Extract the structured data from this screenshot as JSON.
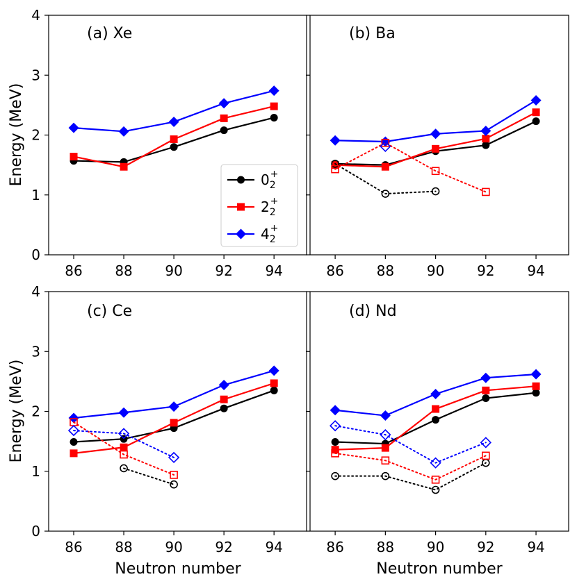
{
  "figure": {
    "ylabel": "Energy (MeV)",
    "xlabel": "Neutron number"
  },
  "legend": [
    {
      "base": "0",
      "sub": "2",
      "sup": "+",
      "color": "#000000",
      "marker": "circle"
    },
    {
      "base": "2",
      "sub": "2",
      "sup": "+",
      "color": "#ff0000",
      "marker": "square"
    },
    {
      "base": "4",
      "sub": "2",
      "sup": "+",
      "color": "#0000ff",
      "marker": "diamond"
    }
  ],
  "chart_data": [
    {
      "type": "line",
      "title": "(a) Xe",
      "xlabel": "",
      "ylabel": "Energy (MeV)",
      "xlim": [
        85,
        95.3
      ],
      "ylim": [
        0,
        4
      ],
      "xticks": [
        86,
        88,
        90,
        92,
        94
      ],
      "yticks": [
        0,
        1,
        2,
        3,
        4
      ],
      "series": [
        {
          "name": "0_2^+",
          "style": "solid",
          "color": "#000000",
          "marker": "circle",
          "x": [
            86,
            88,
            90,
            92,
            94
          ],
          "y": [
            1.57,
            1.55,
            1.8,
            2.08,
            2.29
          ]
        },
        {
          "name": "2_2^+",
          "style": "solid",
          "color": "#ff0000",
          "marker": "square",
          "x": [
            86,
            88,
            90,
            92,
            94
          ],
          "y": [
            1.64,
            1.47,
            1.93,
            2.28,
            2.48
          ]
        },
        {
          "name": "4_2^+",
          "style": "solid",
          "color": "#0000ff",
          "marker": "diamond",
          "x": [
            86,
            88,
            90,
            92,
            94
          ],
          "y": [
            2.12,
            2.06,
            2.22,
            2.53,
            2.74
          ]
        }
      ]
    },
    {
      "type": "line",
      "title": "(b) Ba",
      "xlabel": "",
      "ylabel": "",
      "xlim": [
        85,
        95.3
      ],
      "ylim": [
        0,
        4
      ],
      "xticks": [
        86,
        88,
        90,
        92,
        94
      ],
      "yticks": [
        0,
        1,
        2,
        3,
        4
      ],
      "series": [
        {
          "name": "0_2^+",
          "style": "solid",
          "color": "#000000",
          "marker": "circle",
          "x": [
            86,
            88,
            90,
            92,
            94
          ],
          "y": [
            1.52,
            1.5,
            1.73,
            1.83,
            2.23
          ]
        },
        {
          "name": "2_2^+",
          "style": "solid",
          "color": "#ff0000",
          "marker": "square",
          "x": [
            86,
            88,
            90,
            92,
            94
          ],
          "y": [
            1.5,
            1.47,
            1.77,
            1.94,
            2.38
          ]
        },
        {
          "name": "4_2^+",
          "style": "solid",
          "color": "#0000ff",
          "marker": "diamond",
          "x": [
            86,
            88,
            90,
            92,
            94
          ],
          "y": [
            1.91,
            1.89,
            2.02,
            2.07,
            2.58
          ]
        },
        {
          "name": "0_2^+ (dotted)",
          "style": "dotted",
          "color": "#000000",
          "marker": "circle",
          "x": [
            86,
            88,
            90
          ],
          "y": [
            1.52,
            1.02,
            1.06
          ]
        },
        {
          "name": "2_2^+ (dotted)",
          "style": "dotted",
          "color": "#ff0000",
          "marker": "square",
          "x": [
            86,
            88,
            90,
            92
          ],
          "y": [
            1.43,
            1.87,
            1.4,
            1.05
          ]
        },
        {
          "name": "4_2^+ (dotted)",
          "style": "dotted",
          "color": "#0000ff",
          "marker": "diamond",
          "x": [
            88
          ],
          "y": [
            1.81
          ]
        }
      ]
    },
    {
      "type": "line",
      "title": "(c) Ce",
      "xlabel": "Neutron number",
      "ylabel": "Energy (MeV)",
      "xlim": [
        85,
        95.3
      ],
      "ylim": [
        0,
        4
      ],
      "xticks": [
        86,
        88,
        90,
        92,
        94
      ],
      "yticks": [
        0,
        1,
        2,
        3,
        4
      ],
      "series": [
        {
          "name": "0_2^+",
          "style": "solid",
          "color": "#000000",
          "marker": "circle",
          "x": [
            86,
            88,
            90,
            92,
            94
          ],
          "y": [
            1.49,
            1.54,
            1.72,
            2.05,
            2.35
          ]
        },
        {
          "name": "2_2^+",
          "style": "solid",
          "color": "#ff0000",
          "marker": "square",
          "x": [
            86,
            88,
            90,
            92,
            94
          ],
          "y": [
            1.3,
            1.4,
            1.81,
            2.2,
            2.47
          ]
        },
        {
          "name": "4_2^+",
          "style": "solid",
          "color": "#0000ff",
          "marker": "diamond",
          "x": [
            86,
            88,
            90,
            92,
            94
          ],
          "y": [
            1.89,
            1.98,
            2.08,
            2.44,
            2.68
          ]
        },
        {
          "name": "0_2^+ (dotted)",
          "style": "dotted",
          "color": "#000000",
          "marker": "circle",
          "x": [
            88,
            90
          ],
          "y": [
            1.05,
            0.78
          ]
        },
        {
          "name": "2_2^+ (dotted)",
          "style": "dotted",
          "color": "#ff0000",
          "marker": "square",
          "x": [
            86,
            88,
            90
          ],
          "y": [
            1.82,
            1.28,
            0.94
          ]
        },
        {
          "name": "4_2^+ (dotted)",
          "style": "dotted",
          "color": "#0000ff",
          "marker": "diamond",
          "x": [
            86,
            88,
            90
          ],
          "y": [
            1.68,
            1.63,
            1.23
          ]
        }
      ]
    },
    {
      "type": "line",
      "title": "(d) Nd",
      "xlabel": "Neutron number",
      "ylabel": "",
      "xlim": [
        85,
        95.3
      ],
      "ylim": [
        0,
        4
      ],
      "xticks": [
        86,
        88,
        90,
        92,
        94
      ],
      "yticks": [
        0,
        1,
        2,
        3,
        4
      ],
      "series": [
        {
          "name": "0_2^+",
          "style": "solid",
          "color": "#000000",
          "marker": "circle",
          "x": [
            86,
            88,
            90,
            92,
            94
          ],
          "y": [
            1.49,
            1.46,
            1.86,
            2.22,
            2.31
          ]
        },
        {
          "name": "2_2^+",
          "style": "solid",
          "color": "#ff0000",
          "marker": "square",
          "x": [
            86,
            88,
            90,
            92,
            94
          ],
          "y": [
            1.36,
            1.39,
            2.04,
            2.35,
            2.42
          ]
        },
        {
          "name": "4_2^+",
          "style": "solid",
          "color": "#0000ff",
          "marker": "diamond",
          "x": [
            86,
            88,
            90,
            92,
            94
          ],
          "y": [
            2.02,
            1.93,
            2.29,
            2.56,
            2.62
          ]
        },
        {
          "name": "0_2^+ (dotted)",
          "style": "dotted",
          "color": "#000000",
          "marker": "circle",
          "x": [
            86,
            88,
            90,
            92
          ],
          "y": [
            0.92,
            0.92,
            0.69,
            1.14
          ]
        },
        {
          "name": "2_2^+ (dotted)",
          "style": "dotted",
          "color": "#ff0000",
          "marker": "square",
          "x": [
            86,
            88,
            90,
            92
          ],
          "y": [
            1.3,
            1.18,
            0.86,
            1.26
          ]
        },
        {
          "name": "4_2^+ (dotted)",
          "style": "dotted",
          "color": "#0000ff",
          "marker": "diamond",
          "x": [
            86,
            88,
            90,
            92
          ],
          "y": [
            1.76,
            1.61,
            1.14,
            1.48
          ]
        }
      ]
    }
  ]
}
